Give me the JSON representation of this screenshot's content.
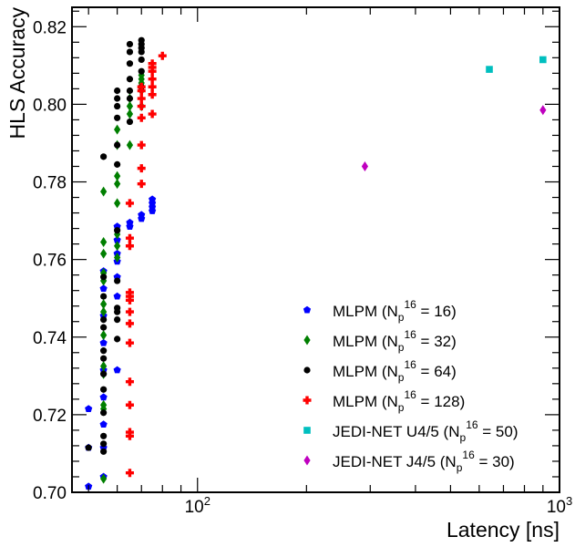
{
  "chart_data": {
    "type": "scatter",
    "title": "",
    "xlabel": "Latency [ns]",
    "ylabel": "HLS Accuracy",
    "xscale": "log",
    "xlim": [
      45,
      1000
    ],
    "ylim": [
      0.7,
      0.825
    ],
    "xticks": [
      {
        "value": 100,
        "base": "10",
        "exp": "2"
      },
      {
        "value": 1000,
        "base": "10",
        "exp": "3"
      }
    ],
    "yticks": [
      {
        "value": 0.7,
        "label": "0.70"
      },
      {
        "value": 0.72,
        "label": "0.72"
      },
      {
        "value": 0.74,
        "label": "0.74"
      },
      {
        "value": 0.76,
        "label": "0.76"
      },
      {
        "value": 0.78,
        "label": "0.78"
      },
      {
        "value": 0.8,
        "label": "0.80"
      },
      {
        "value": 0.82,
        "label": "0.82"
      }
    ],
    "legend_position": "bottom-right",
    "series": [
      {
        "name": "MLPM (Np16 = 16)",
        "legend": {
          "prefix": "MLPM (N",
          "sub": "p",
          "sup": "16",
          "suffix": " = 16)"
        },
        "color": "#0000ff",
        "marker": "pentagon",
        "points": [
          {
            "x": 50,
            "y": 0.7015
          },
          {
            "x": 50,
            "y": 0.7115
          },
          {
            "x": 50,
            "y": 0.7215
          },
          {
            "x": 55,
            "y": 0.704
          },
          {
            "x": 55,
            "y": 0.7115
          },
          {
            "x": 55,
            "y": 0.7175
          },
          {
            "x": 55,
            "y": 0.7245
          },
          {
            "x": 55,
            "y": 0.7315
          },
          {
            "x": 55,
            "y": 0.7385
          },
          {
            "x": 55,
            "y": 0.7455
          },
          {
            "x": 55,
            "y": 0.7525
          },
          {
            "x": 55,
            "y": 0.757
          },
          {
            "x": 60,
            "y": 0.7315
          },
          {
            "x": 60,
            "y": 0.7505
          },
          {
            "x": 60,
            "y": 0.7555
          },
          {
            "x": 60,
            "y": 0.7595
          },
          {
            "x": 60,
            "y": 0.7615
          },
          {
            "x": 60,
            "y": 0.765
          },
          {
            "x": 60,
            "y": 0.7685
          },
          {
            "x": 65,
            "y": 0.7685
          },
          {
            "x": 65,
            "y": 0.7695
          },
          {
            "x": 70,
            "y": 0.7705
          },
          {
            "x": 70,
            "y": 0.7715
          },
          {
            "x": 75,
            "y": 0.7725
          },
          {
            "x": 75,
            "y": 0.7735
          },
          {
            "x": 75,
            "y": 0.7745
          },
          {
            "x": 75,
            "y": 0.7755
          }
        ]
      },
      {
        "name": "MLPM (Np16 = 32)",
        "legend": {
          "prefix": "MLPM (N",
          "sub": "p",
          "sup": "16",
          "suffix": " = 32)"
        },
        "color": "#007f00",
        "marker": "diamond",
        "points": [
          {
            "x": 55,
            "y": 0.7035
          },
          {
            "x": 55,
            "y": 0.7215
          },
          {
            "x": 55,
            "y": 0.7225
          },
          {
            "x": 55,
            "y": 0.7305
          },
          {
            "x": 55,
            "y": 0.7325
          },
          {
            "x": 55,
            "y": 0.7405
          },
          {
            "x": 55,
            "y": 0.7465
          },
          {
            "x": 55,
            "y": 0.7485
          },
          {
            "x": 55,
            "y": 0.7545
          },
          {
            "x": 55,
            "y": 0.7565
          },
          {
            "x": 55,
            "y": 0.7615
          },
          {
            "x": 55,
            "y": 0.7645
          },
          {
            "x": 55,
            "y": 0.7775
          },
          {
            "x": 60,
            "y": 0.7605
          },
          {
            "x": 60,
            "y": 0.7635
          },
          {
            "x": 60,
            "y": 0.7665
          },
          {
            "x": 60,
            "y": 0.7745
          },
          {
            "x": 60,
            "y": 0.7795
          },
          {
            "x": 60,
            "y": 0.7815
          },
          {
            "x": 60,
            "y": 0.7895
          },
          {
            "x": 60,
            "y": 0.7935
          },
          {
            "x": 65,
            "y": 0.7895
          },
          {
            "x": 65,
            "y": 0.7975
          },
          {
            "x": 65,
            "y": 0.7995
          },
          {
            "x": 65,
            "y": 0.8015
          },
          {
            "x": 70,
            "y": 0.7995
          },
          {
            "x": 70,
            "y": 0.8035
          },
          {
            "x": 70,
            "y": 0.8055
          },
          {
            "x": 70,
            "y": 0.8065
          },
          {
            "x": 70,
            "y": 0.8075
          }
        ]
      },
      {
        "name": "MLPM (Np16 = 64)",
        "legend": {
          "prefix": "MLPM (N",
          "sub": "p",
          "sup": "16",
          "suffix": " = 64)"
        },
        "color": "#000000",
        "marker": "circle",
        "points": [
          {
            "x": 50,
            "y": 0.7115
          },
          {
            "x": 55,
            "y": 0.7105
          },
          {
            "x": 55,
            "y": 0.7125
          },
          {
            "x": 55,
            "y": 0.7145
          },
          {
            "x": 55,
            "y": 0.7205
          },
          {
            "x": 55,
            "y": 0.7265
          },
          {
            "x": 55,
            "y": 0.7305
          },
          {
            "x": 55,
            "y": 0.7345
          },
          {
            "x": 55,
            "y": 0.7365
          },
          {
            "x": 55,
            "y": 0.7425
          },
          {
            "x": 55,
            "y": 0.7445
          },
          {
            "x": 55,
            "y": 0.7505
          },
          {
            "x": 55,
            "y": 0.7555
          },
          {
            "x": 55,
            "y": 0.7865
          },
          {
            "x": 60,
            "y": 0.7395
          },
          {
            "x": 60,
            "y": 0.7445
          },
          {
            "x": 60,
            "y": 0.7465
          },
          {
            "x": 60,
            "y": 0.7475
          },
          {
            "x": 60,
            "y": 0.7545
          },
          {
            "x": 60,
            "y": 0.7675
          },
          {
            "x": 60,
            "y": 0.7845
          },
          {
            "x": 60,
            "y": 0.7895
          },
          {
            "x": 60,
            "y": 0.7965
          },
          {
            "x": 60,
            "y": 0.7995
          },
          {
            "x": 60,
            "y": 0.8015
          },
          {
            "x": 60,
            "y": 0.8035
          },
          {
            "x": 65,
            "y": 0.7955
          },
          {
            "x": 65,
            "y": 0.8015
          },
          {
            "x": 65,
            "y": 0.8035
          },
          {
            "x": 65,
            "y": 0.8065
          },
          {
            "x": 65,
            "y": 0.8105
          },
          {
            "x": 65,
            "y": 0.8135
          },
          {
            "x": 65,
            "y": 0.8155
          },
          {
            "x": 70,
            "y": 0.8045
          },
          {
            "x": 70,
            "y": 0.8085
          },
          {
            "x": 70,
            "y": 0.8115
          },
          {
            "x": 70,
            "y": 0.8135
          },
          {
            "x": 70,
            "y": 0.8145
          },
          {
            "x": 70,
            "y": 0.8155
          },
          {
            "x": 70,
            "y": 0.8165
          }
        ]
      },
      {
        "name": "MLPM (Np16 = 128)",
        "legend": {
          "prefix": "MLPM (N",
          "sub": "p",
          "sup": "16",
          "suffix": " = 128)"
        },
        "color": "#ff0000",
        "marker": "cross",
        "points": [
          {
            "x": 65,
            "y": 0.705
          },
          {
            "x": 65,
            "y": 0.7145
          },
          {
            "x": 65,
            "y": 0.7155
          },
          {
            "x": 65,
            "y": 0.7225
          },
          {
            "x": 65,
            "y": 0.7285
          },
          {
            "x": 65,
            "y": 0.7385
          },
          {
            "x": 65,
            "y": 0.7435
          },
          {
            "x": 65,
            "y": 0.7465
          },
          {
            "x": 65,
            "y": 0.7495
          },
          {
            "x": 65,
            "y": 0.7505
          },
          {
            "x": 65,
            "y": 0.7515
          },
          {
            "x": 65,
            "y": 0.7635
          },
          {
            "x": 65,
            "y": 0.7655
          },
          {
            "x": 65,
            "y": 0.7745
          },
          {
            "x": 70,
            "y": 0.7795
          },
          {
            "x": 70,
            "y": 0.7835
          },
          {
            "x": 70,
            "y": 0.7895
          },
          {
            "x": 70,
            "y": 0.7965
          },
          {
            "x": 70,
            "y": 0.7995
          },
          {
            "x": 70,
            "y": 0.8015
          },
          {
            "x": 70,
            "y": 0.8035
          },
          {
            "x": 70,
            "y": 0.8045
          },
          {
            "x": 75,
            "y": 0.7975
          },
          {
            "x": 75,
            "y": 0.8025
          },
          {
            "x": 75,
            "y": 0.8045
          },
          {
            "x": 75,
            "y": 0.8065
          },
          {
            "x": 75,
            "y": 0.8085
          },
          {
            "x": 75,
            "y": 0.8095
          },
          {
            "x": 75,
            "y": 0.8105
          },
          {
            "x": 80,
            "y": 0.8125
          }
        ]
      },
      {
        "name": "JEDI-NET U4/5 (Np16 = 50)",
        "legend": {
          "prefix": "JEDI-NET U4/5 (N",
          "sub": "p",
          "sup": "16",
          "suffix": " = 50)"
        },
        "color": "#00bfbf",
        "marker": "square",
        "points": [
          {
            "x": 640,
            "y": 0.809
          },
          {
            "x": 900,
            "y": 0.8115
          }
        ]
      },
      {
        "name": "JEDI-NET J4/5 (Np16 = 30)",
        "legend": {
          "prefix": "JEDI-NET J4/5 (N",
          "sub": "p",
          "sup": "16",
          "suffix": " = 30)"
        },
        "color": "#bf00bf",
        "marker": "diamond",
        "points": [
          {
            "x": 290,
            "y": 0.784
          },
          {
            "x": 900,
            "y": 0.7985
          }
        ]
      }
    ]
  }
}
